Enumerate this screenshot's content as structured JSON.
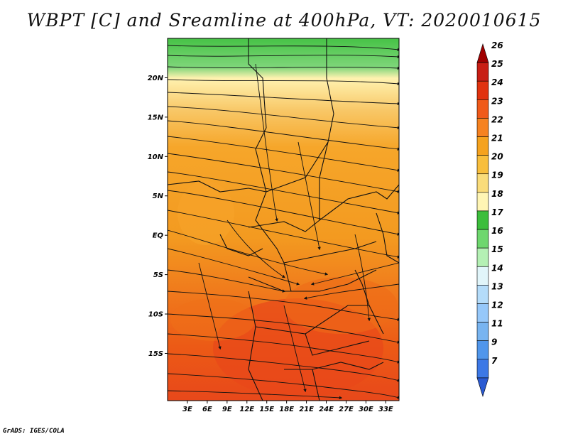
{
  "title": "WBPT [C] and Sreamline at 400hPa, VT: 2020010615",
  "credit": "GrADS: IGES/COLA",
  "map": {
    "lon_range": [
      0,
      35
    ],
    "lat_range": [
      -21,
      25
    ],
    "lat_ticks": [
      {
        "value": 20,
        "label": "20N"
      },
      {
        "value": 15,
        "label": "15N"
      },
      {
        "value": 10,
        "label": "10N"
      },
      {
        "value": 5,
        "label": "5N"
      },
      {
        "value": 0,
        "label": "EQ"
      },
      {
        "value": -5,
        "label": "5S"
      },
      {
        "value": -10,
        "label": "10S"
      },
      {
        "value": -15,
        "label": "15S"
      }
    ],
    "lon_ticks": [
      {
        "value": 3,
        "label": "3E"
      },
      {
        "value": 6,
        "label": "6E"
      },
      {
        "value": 9,
        "label": "9E"
      },
      {
        "value": 12,
        "label": "12E"
      },
      {
        "value": 15,
        "label": "15E"
      },
      {
        "value": 18,
        "label": "18E"
      },
      {
        "value": 21,
        "label": "21E"
      },
      {
        "value": 24,
        "label": "24E"
      },
      {
        "value": 27,
        "label": "27E"
      },
      {
        "value": 30,
        "label": "30E"
      },
      {
        "value": 33,
        "label": "33E"
      }
    ]
  },
  "colorbar": {
    "levels": [
      "26",
      "25",
      "24",
      "23",
      "22",
      "21",
      "20",
      "19",
      "18",
      "17",
      "16",
      "15",
      "14",
      "13",
      "12",
      "11",
      "9",
      "7"
    ],
    "colors": [
      "#a00000",
      "#c81e14",
      "#e1320f",
      "#f05a19",
      "#f68220",
      "#f5a21e",
      "#f8be3c",
      "#fadc7a",
      "#fff5b4",
      "#3cbe3c",
      "#6ed76e",
      "#b4f0b4",
      "#e1f5fa",
      "#b4dcfa",
      "#96c8fa",
      "#78b4f0",
      "#5096eb",
      "#3c78e6",
      "#2a5ad2"
    ]
  }
}
